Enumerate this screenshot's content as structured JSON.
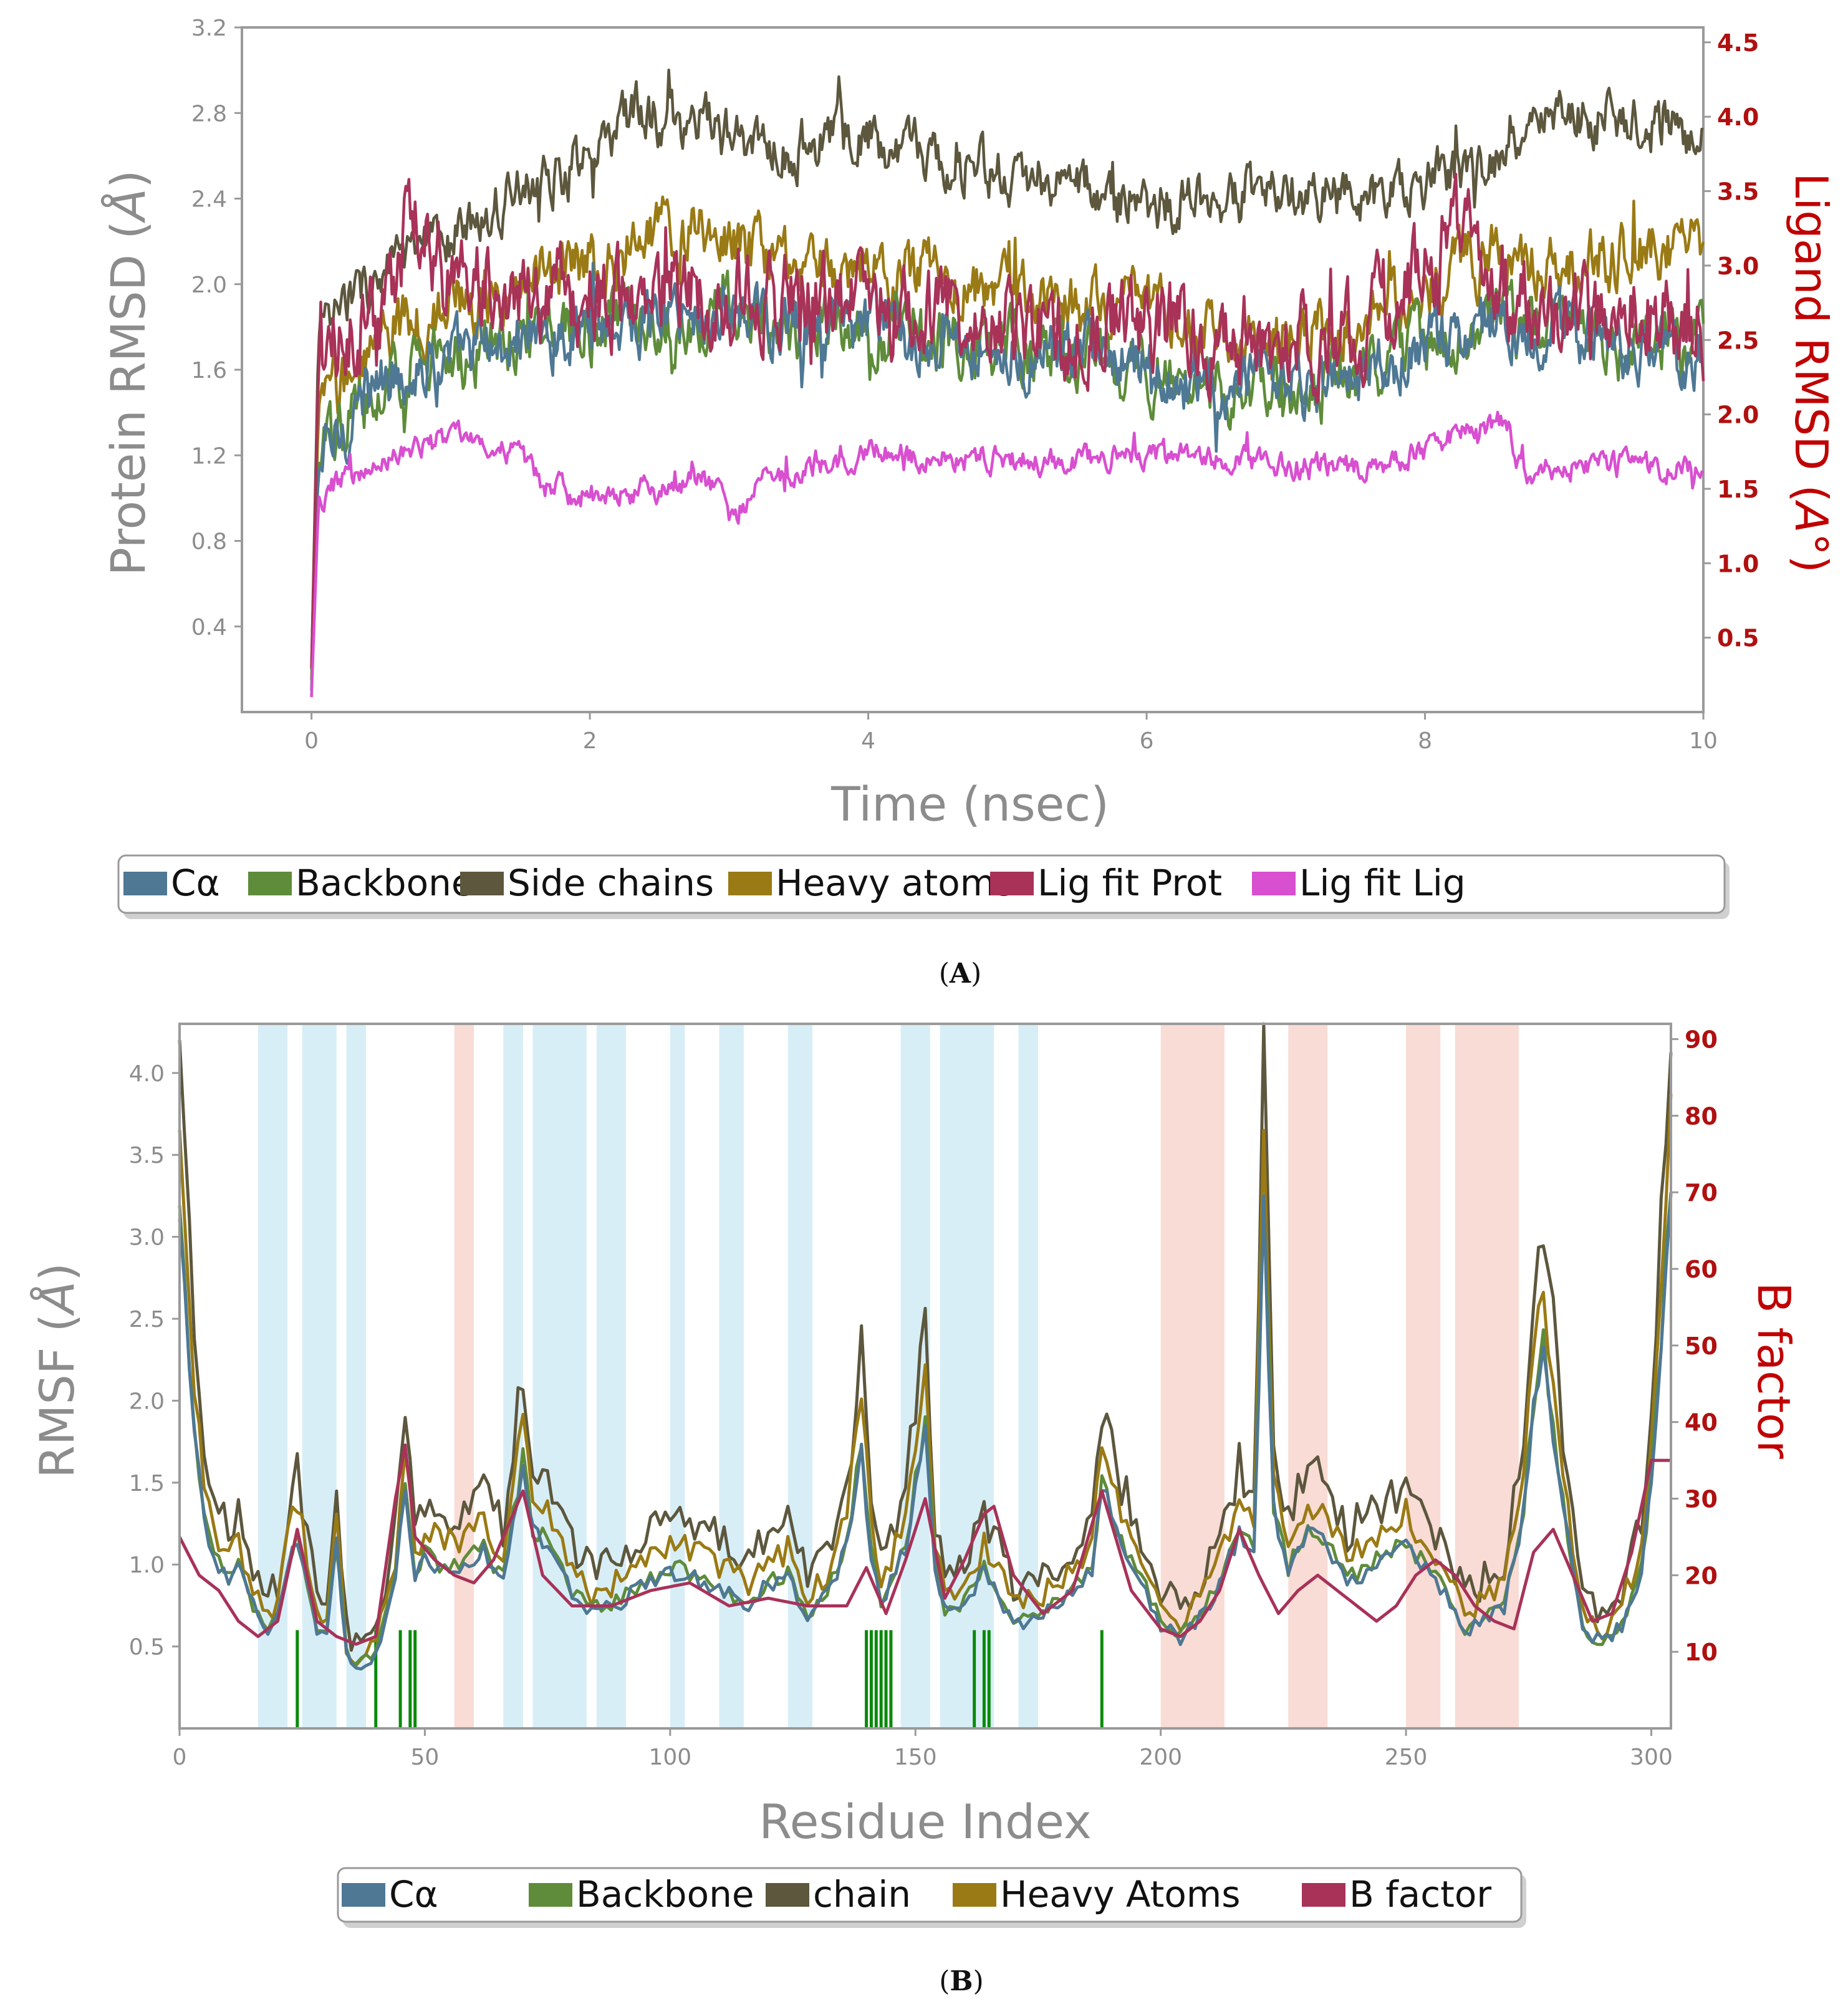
{
  "chart_data": [
    {
      "id": "A",
      "type": "line",
      "caption_letter": "A",
      "xlabel": "Time (nsec)",
      "ylabel": "Protein RMSD (Å)",
      "ylabel_base": "Protein RMSD (",
      "ylabel_unit": "Å",
      "ylabel_close": ")",
      "y2label": "Ligand RMSD (A°)",
      "y2label_base": "Ligand RMSD (",
      "y2label_unit": "A",
      "y2label_close": "°)",
      "xlim": [
        -0.5,
        10
      ],
      "ylim": [
        0,
        3.2
      ],
      "y2lim": [
        0,
        4.6
      ],
      "x_ticks": [
        "0",
        "2",
        "4",
        "6",
        "8",
        "10"
      ],
      "y_ticks": [
        "0.4",
        "0.8",
        "1.2",
        "1.6",
        "2.0",
        "2.4",
        "2.8",
        "3.2"
      ],
      "y2_ticks": [
        "0.5",
        "1.0",
        "1.5",
        "2.0",
        "2.5",
        "3.0",
        "3.5",
        "4.0",
        "4.5"
      ],
      "legend": [
        "Cα",
        "Backbone",
        "Side chains",
        "Heavy atoms",
        "Lig fit Prot",
        "Lig fit Lig"
      ],
      "series": [
        {
          "name": "Cα",
          "color": "#4e7894",
          "axis": "left",
          "noise": 0.12,
          "x": [
            0,
            0.05,
            0.3,
            0.6,
            1.0,
            1.5,
            2.0,
            2.5,
            3.0,
            3.5,
            4.0,
            4.5,
            5.0,
            5.5,
            6.0,
            6.5,
            7.0,
            7.5,
            8.0,
            8.5,
            9.0,
            9.5,
            10.0
          ],
          "y": [
            0.1,
            1.15,
            1.4,
            1.6,
            1.65,
            1.75,
            1.8,
            1.85,
            1.85,
            1.8,
            1.8,
            1.75,
            1.7,
            1.65,
            1.6,
            1.5,
            1.5,
            1.55,
            1.7,
            1.85,
            1.75,
            1.7,
            1.7
          ]
        },
        {
          "name": "Backbone",
          "color": "#5e8c3a",
          "axis": "left",
          "noise": 0.12,
          "x": [
            0,
            0.05,
            0.3,
            0.6,
            1.0,
            1.5,
            2.0,
            2.5,
            3.0,
            3.5,
            4.0,
            4.5,
            5.0,
            5.5,
            6.0,
            6.5,
            7.0,
            7.5,
            8.0,
            8.5,
            9.0,
            9.5,
            10.0
          ],
          "y": [
            0.1,
            1.15,
            1.4,
            1.6,
            1.65,
            1.75,
            1.8,
            1.85,
            1.85,
            1.8,
            1.8,
            1.75,
            1.7,
            1.65,
            1.6,
            1.5,
            1.5,
            1.55,
            1.7,
            1.85,
            1.75,
            1.7,
            1.75
          ]
        },
        {
          "name": "Side chains",
          "color": "#5c573d",
          "axis": "left",
          "noise": 0.1,
          "x": [
            0,
            0.05,
            0.3,
            0.6,
            1.0,
            1.5,
            2.0,
            2.3,
            2.8,
            3.3,
            3.8,
            4.5,
            5.0,
            5.5,
            6.0,
            6.5,
            7.0,
            7.5,
            8.0,
            8.5,
            9.0,
            9.5,
            10.0
          ],
          "y": [
            0.2,
            1.75,
            1.95,
            2.1,
            2.2,
            2.45,
            2.6,
            2.8,
            2.75,
            2.6,
            2.7,
            2.6,
            2.5,
            2.45,
            2.4,
            2.35,
            2.45,
            2.4,
            2.5,
            2.55,
            2.8,
            2.75,
            2.7
          ]
        },
        {
          "name": "Heavy atoms",
          "color": "#9a7a14",
          "axis": "left",
          "noise": 0.12,
          "x": [
            0,
            0.05,
            0.3,
            0.6,
            1.0,
            1.5,
            2.0,
            2.5,
            3.0,
            3.5,
            4.0,
            4.5,
            5.0,
            5.5,
            6.0,
            6.5,
            7.0,
            7.5,
            8.0,
            8.5,
            9.0,
            9.5,
            10.0
          ],
          "y": [
            0.15,
            1.4,
            1.6,
            1.8,
            1.9,
            2.0,
            2.1,
            2.25,
            2.2,
            2.05,
            2.1,
            2.05,
            1.95,
            1.9,
            1.85,
            1.75,
            1.75,
            1.8,
            2.0,
            2.15,
            2.1,
            2.15,
            2.15
          ]
        },
        {
          "name": "Lig fit Prot",
          "color": "#a83258",
          "axis": "right",
          "noise": 0.25,
          "x": [
            0,
            0.05,
            0.3,
            0.6,
            0.7,
            1.0,
            1.5,
            2.0,
            2.5,
            3.0,
            3.5,
            4.0,
            4.5,
            5.0,
            5.5,
            6.0,
            6.5,
            7.0,
            7.5,
            8.0,
            8.3,
            8.6,
            9.0,
            9.5,
            10.0
          ],
          "y": [
            0.3,
            2.3,
            2.6,
            2.8,
            3.4,
            2.9,
            2.9,
            2.8,
            2.8,
            2.85,
            2.7,
            2.75,
            2.7,
            2.6,
            2.6,
            2.6,
            2.55,
            2.45,
            2.6,
            2.9,
            3.4,
            2.8,
            2.6,
            2.7,
            2.6
          ]
        },
        {
          "name": "Lig fit Lig",
          "color": "#d84fd0",
          "axis": "right",
          "noise": 0.07,
          "x": [
            0,
            0.05,
            0.2,
            0.6,
            1.0,
            1.5,
            1.7,
            2.0,
            2.5,
            2.9,
            3.0,
            3.2,
            3.5,
            4.0,
            4.5,
            5.0,
            5.5,
            6.0,
            6.5,
            7.0,
            7.5,
            8.0,
            8.3,
            8.6,
            8.7,
            9.0,
            9.5,
            10.0
          ],
          "y": [
            0.1,
            1.4,
            1.55,
            1.7,
            1.85,
            1.75,
            1.5,
            1.45,
            1.5,
            1.55,
            1.25,
            1.55,
            1.65,
            1.75,
            1.7,
            1.7,
            1.7,
            1.75,
            1.7,
            1.65,
            1.65,
            1.75,
            1.9,
            1.95,
            1.6,
            1.65,
            1.65,
            1.6
          ]
        }
      ]
    },
    {
      "id": "B",
      "type": "line",
      "caption_letter": "B",
      "xlabel": "Residue Index",
      "ylabel": "RMSF (Å)",
      "ylabel_base": "RMSF (",
      "ylabel_unit": "Å",
      "ylabel_close": ")",
      "y2label": "B factor",
      "xlim": [
        0,
        304
      ],
      "ylim": [
        0,
        4.3
      ],
      "y2lim": [
        0,
        92
      ],
      "x_ticks": [
        "0",
        "50",
        "100",
        "150",
        "200",
        "250",
        "300"
      ],
      "y_ticks": [
        "0.5",
        "1.0",
        "1.5",
        "2.0",
        "2.5",
        "3.0",
        "3.5",
        "4.0"
      ],
      "y2_ticks": [
        "10",
        "20",
        "30",
        "40",
        "50",
        "60",
        "70",
        "80",
        "90"
      ],
      "legend": [
        "Cα",
        "Backbone",
        "chain",
        "Heavy Atoms",
        "B factor"
      ],
      "alpha_helix_regions": [
        [
          16,
          22
        ],
        [
          25,
          32
        ],
        [
          34,
          38
        ],
        [
          66,
          70
        ],
        [
          72,
          83
        ],
        [
          85,
          91
        ],
        [
          100,
          103
        ],
        [
          110,
          115
        ],
        [
          124,
          129
        ],
        [
          147,
          153
        ],
        [
          155,
          166
        ],
        [
          171,
          175
        ]
      ],
      "beta_strand_regions": [
        [
          56,
          60
        ],
        [
          200,
          213
        ],
        [
          226,
          234
        ],
        [
          250,
          257
        ],
        [
          260,
          273
        ]
      ],
      "ligand_contact_residues": [
        24,
        40,
        45,
        47,
        48,
        140,
        141,
        142,
        143,
        144,
        145,
        162,
        164,
        165,
        188
      ],
      "series": [
        {
          "name": "Cα",
          "color": "#4e7894",
          "axis": "left",
          "scale": 0.74,
          "noise": 0.05
        },
        {
          "name": "Backbone",
          "color": "#5e8c3a",
          "axis": "left",
          "scale": 0.76,
          "noise": 0.05
        },
        {
          "name": "chain",
          "color": "#5c573d",
          "axis": "left",
          "scale": 1.0,
          "noise": 0.12
        },
        {
          "name": "Heavy Atoms",
          "color": "#9a7a14",
          "axis": "left",
          "scale": 0.87,
          "noise": 0.08
        },
        {
          "name": "B factor",
          "color": "#a83258",
          "axis": "right"
        }
      ],
      "profile_x": [
        0,
        3,
        6,
        10,
        12,
        15,
        18,
        20,
        22,
        24,
        26,
        28,
        30,
        32,
        34,
        36,
        38,
        40,
        44,
        46,
        48,
        50,
        54,
        58,
        62,
        66,
        70,
        72,
        76,
        80,
        84,
        88,
        92,
        96,
        100,
        104,
        108,
        112,
        116,
        120,
        124,
        128,
        132,
        136,
        139,
        141,
        143,
        145,
        148,
        152,
        154,
        156,
        160,
        164,
        166,
        170,
        174,
        178,
        182,
        186,
        188,
        192,
        196,
        200,
        204,
        208,
        212,
        216,
        219,
        221,
        223,
        226,
        230,
        234,
        238,
        242,
        246,
        250,
        254,
        258,
        262,
        266,
        270,
        274,
        276,
        278,
        282,
        286,
        290,
        294,
        298,
        300,
        304
      ],
      "profile_y": [
        4.2,
        2.4,
        1.5,
        1.2,
        1.3,
        1.0,
        0.8,
        0.9,
        1.3,
        1.6,
        1.2,
        0.75,
        0.8,
        1.5,
        0.6,
        0.5,
        0.55,
        0.6,
        1.2,
        2.05,
        1.2,
        1.4,
        1.3,
        1.35,
        1.45,
        1.2,
        2.2,
        1.6,
        1.5,
        1.1,
        0.95,
        1.0,
        1.1,
        1.2,
        1.3,
        1.25,
        1.2,
        1.1,
        1.0,
        1.2,
        1.25,
        0.9,
        1.1,
        1.5,
        2.3,
        1.4,
        1.0,
        1.2,
        1.5,
        2.45,
        1.3,
        0.95,
        1.0,
        1.3,
        1.2,
        0.85,
        0.9,
        1.0,
        1.1,
        1.3,
        2.0,
        1.5,
        1.2,
        0.85,
        0.75,
        0.9,
        1.2,
        1.6,
        1.4,
        4.3,
        1.8,
        1.3,
        1.6,
        1.5,
        1.2,
        1.3,
        1.4,
        1.5,
        1.3,
        1.1,
        0.8,
        0.9,
        1.0,
        1.8,
        2.6,
        3.1,
        1.8,
        0.8,
        0.7,
        0.85,
        1.3,
        2.0,
        4.3
      ],
      "bfactor_x": [
        0,
        4,
        8,
        12,
        16,
        20,
        24,
        28,
        32,
        36,
        40,
        44,
        46,
        48,
        52,
        56,
        60,
        64,
        70,
        74,
        80,
        88,
        96,
        104,
        112,
        120,
        128,
        136,
        140,
        144,
        148,
        152,
        156,
        160,
        164,
        166,
        170,
        176,
        182,
        188,
        194,
        200,
        204,
        208,
        212,
        216,
        220,
        224,
        228,
        232,
        236,
        240,
        244,
        248,
        252,
        256,
        260,
        264,
        268,
        272,
        276,
        280,
        284,
        288,
        292,
        296,
        300,
        304
      ],
      "bfactor_y": [
        25,
        20,
        18,
        14,
        12,
        14,
        26,
        14,
        12,
        11,
        12,
        30,
        37,
        25,
        22,
        20,
        19,
        22,
        31,
        20,
        16,
        16,
        18,
        19,
        16,
        17,
        16,
        16,
        21,
        15,
        22,
        30,
        17,
        22,
        28,
        29,
        20,
        15,
        18,
        31,
        18,
        13,
        12,
        14,
        18,
        26,
        20,
        15,
        18,
        20,
        18,
        16,
        14,
        16,
        20,
        22,
        20,
        16,
        14,
        13,
        23,
        26,
        20,
        14,
        15,
        23,
        35,
        35
      ]
    }
  ]
}
